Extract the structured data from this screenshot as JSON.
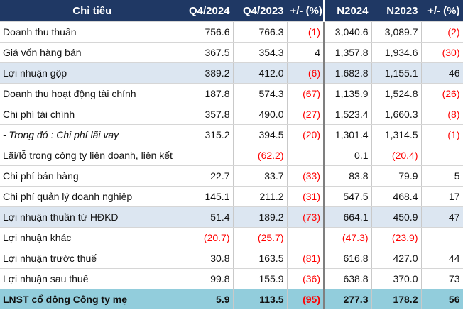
{
  "header": {
    "label": "Chỉ tiêu",
    "q4_2024": "Q4/2024",
    "q4_2023": "Q4/2023",
    "q_change": "+/- (%)",
    "n2024": "N2024",
    "n2023": "N2023",
    "n_change": "+/- (%)"
  },
  "rows": [
    {
      "label": "Doanh thu thuần",
      "q4_2024": "756.6",
      "q4_2023": "766.3",
      "q_change": "(1)",
      "n2024": "3,040.6",
      "n2023": "3,089.7",
      "n_change": "(2)"
    },
    {
      "label": "Giá vốn hàng bán",
      "q4_2024": "367.5",
      "q4_2023": "354.3",
      "q_change": "4",
      "n2024": "1,357.8",
      "n2023": "1,934.6",
      "n_change": "(30)"
    },
    {
      "label": "Lợi nhuận gộp",
      "q4_2024": "389.2",
      "q4_2023": "412.0",
      "q_change": "(6)",
      "n2024": "1,682.8",
      "n2023": "1,155.1",
      "n_change": "46"
    },
    {
      "label": "Doanh thu hoạt động tài chính",
      "q4_2024": "187.8",
      "q4_2023": "574.3",
      "q_change": "(67)",
      "n2024": "1,135.9",
      "n2023": "1,524.8",
      "n_change": "(26)"
    },
    {
      "label": "Chi phí tài chính",
      "q4_2024": "357.8",
      "q4_2023": "490.0",
      "q_change": "(27)",
      "n2024": "1,523.4",
      "n2023": "1,660.3",
      "n_change": "(8)"
    },
    {
      "label": "- Trong đó : Chi phí lãi vay",
      "q4_2024": "315.2",
      "q4_2023": "394.5",
      "q_change": "(20)",
      "n2024": "1,301.4",
      "n2023": "1,314.5",
      "n_change": "(1)"
    },
    {
      "label": "Lãi/lỗ trong công ty liên doanh, liên kết",
      "q4_2024": "",
      "q4_2023": "(62.2)",
      "q_change": "",
      "n2024": "0.1",
      "n2023": "(20.4)",
      "n_change": ""
    },
    {
      "label": "Chi phí bán hàng",
      "q4_2024": "22.7",
      "q4_2023": "33.7",
      "q_change": "(33)",
      "n2024": "83.8",
      "n2023": "79.9",
      "n_change": "5"
    },
    {
      "label": "Chi phí quản lý doanh nghiệp",
      "q4_2024": "145.1",
      "q4_2023": "211.2",
      "q_change": "(31)",
      "n2024": "547.5",
      "n2023": "468.4",
      "n_change": "17"
    },
    {
      "label": "Lợi nhuận thuần từ HĐKD",
      "q4_2024": "51.4",
      "q4_2023": "189.2",
      "q_change": "(73)",
      "n2024": "664.1",
      "n2023": "450.9",
      "n_change": "47"
    },
    {
      "label": "Lợi nhuận khác",
      "q4_2024": "(20.7)",
      "q4_2023": "(25.7)",
      "q_change": "",
      "n2024": "(47.3)",
      "n2023": "(23.9)",
      "n_change": ""
    },
    {
      "label": "Lợi nhuận trước thuế",
      "q4_2024": "30.8",
      "q4_2023": "163.5",
      "q_change": "(81)",
      "n2024": "616.8",
      "n2023": "427.0",
      "n_change": "44"
    },
    {
      "label": "Lợi nhuận sau thuế",
      "q4_2024": "99.8",
      "q4_2023": "155.9",
      "q_change": "(36)",
      "n2024": "638.8",
      "n2023": "370.0",
      "n_change": "73"
    },
    {
      "label": "LNST cổ đông Công ty mẹ",
      "q4_2024": "5.9",
      "q4_2023": "113.5",
      "q_change": "(95)",
      "n2024": "277.3",
      "n2023": "178.2",
      "n_change": "56"
    }
  ],
  "colors": {
    "header_bg": "#1f3864",
    "highlight_bg": "#dce6f1",
    "total_bg": "#92cddc",
    "negative_text": "#ff0000"
  }
}
